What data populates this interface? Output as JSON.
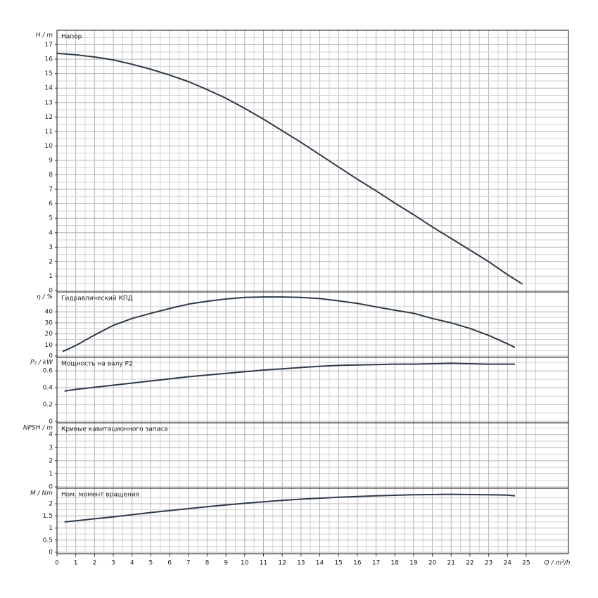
{
  "chart_data": [
    {
      "type": "line",
      "title": "Напор",
      "ylabel": "H / m",
      "color": "#2e3a48",
      "xlim": [
        0,
        27.25
      ],
      "ylim": [
        0,
        18
      ],
      "yticks": [
        0,
        1,
        2,
        3,
        4,
        5,
        6,
        7,
        8,
        9,
        10,
        11,
        12,
        13,
        14,
        15,
        16,
        17
      ],
      "grid": true,
      "x": [
        0,
        1,
        2,
        3,
        4,
        5,
        6,
        7,
        8,
        9,
        10,
        11,
        12,
        13,
        14,
        15,
        16,
        17,
        18,
        19,
        20,
        21,
        22,
        23,
        24,
        24.8
      ],
      "values": [
        16.4,
        16.3,
        16.15,
        15.95,
        15.65,
        15.3,
        14.9,
        14.45,
        13.9,
        13.3,
        12.6,
        11.85,
        11.05,
        10.25,
        9.4,
        8.55,
        7.7,
        6.9,
        6.05,
        5.25,
        4.4,
        3.6,
        2.8,
        2.0,
        1.1,
        0.45
      ]
    },
    {
      "type": "line",
      "title": "Гидравлический КПД",
      "ylabel": "η / %",
      "color": "#2e3a48",
      "xlim": [
        0,
        27.25
      ],
      "ylim": [
        0,
        58
      ],
      "yticks": [
        0,
        10,
        20,
        30,
        40
      ],
      "grid": true,
      "x": [
        0.3,
        1,
        2,
        3,
        4,
        5,
        6,
        7,
        8,
        9,
        10,
        11,
        12,
        13,
        14,
        15,
        16,
        17,
        18,
        19,
        20,
        21,
        22,
        23,
        24,
        24.4
      ],
      "values": [
        4,
        9.5,
        19,
        27.7,
        34,
        38.7,
        43,
        47,
        49.5,
        51.6,
        53,
        53.5,
        53.5,
        53,
        52,
        50,
        47.7,
        44.5,
        41.5,
        38.7,
        34,
        30,
        25,
        18.7,
        11,
        7.7
      ]
    },
    {
      "type": "line",
      "title": "Мощность на валу P2",
      "ylabel": "P₂ / kW",
      "color": "#2e3a48",
      "xlim": [
        0,
        27.25
      ],
      "ylim": [
        0,
        0.76
      ],
      "yticks": [
        0,
        0.2,
        0.4,
        0.6
      ],
      "grid": true,
      "x": [
        0.4,
        1,
        2,
        3,
        4,
        5,
        6,
        7,
        8,
        9,
        10,
        11,
        12,
        13,
        14,
        15,
        16,
        17,
        18,
        19,
        20,
        21,
        22,
        23,
        24,
        24.4
      ],
      "values": [
        0.36,
        0.38,
        0.405,
        0.43,
        0.455,
        0.48,
        0.505,
        0.53,
        0.55,
        0.57,
        0.59,
        0.61,
        0.625,
        0.64,
        0.655,
        0.665,
        0.67,
        0.675,
        0.68,
        0.68,
        0.685,
        0.69,
        0.685,
        0.68,
        0.68,
        0.68
      ]
    },
    {
      "type": "line",
      "title": "Кривые кавитационного запаса",
      "ylabel": "NPSH / m",
      "color": "#2e3a48",
      "xlim": [
        0,
        27.25
      ],
      "ylim": [
        0,
        4.9
      ],
      "yticks": [
        0,
        1,
        2,
        3,
        4
      ],
      "grid": true,
      "x": [],
      "values": []
    },
    {
      "type": "line",
      "title": "Ном. момент вращения",
      "ylabel": "M / Nm",
      "color": "#2e3a48",
      "xlim": [
        0,
        27.25
      ],
      "ylim": [
        0,
        2.64
      ],
      "yticks": [
        0,
        0.5,
        1,
        1.5,
        2
      ],
      "grid": true,
      "xticks": [
        0,
        1,
        2,
        3,
        4,
        5,
        6,
        7,
        8,
        9,
        10,
        11,
        12,
        13,
        14,
        15,
        16,
        17,
        18,
        19,
        20,
        21,
        22,
        23,
        24,
        25
      ],
      "xlabel": "Q / m³/h",
      "x": [
        0.4,
        1,
        2,
        3,
        4,
        5,
        6,
        7,
        8,
        9,
        10,
        11,
        12,
        13,
        14,
        15,
        16,
        17,
        18,
        19,
        20,
        21,
        22,
        23,
        24,
        24.4
      ],
      "values": [
        1.25,
        1.3,
        1.38,
        1.46,
        1.55,
        1.64,
        1.72,
        1.8,
        1.88,
        1.95,
        2.02,
        2.08,
        2.14,
        2.19,
        2.23,
        2.27,
        2.3,
        2.33,
        2.35,
        2.37,
        2.38,
        2.39,
        2.38,
        2.37,
        2.36,
        2.33
      ]
    }
  ]
}
